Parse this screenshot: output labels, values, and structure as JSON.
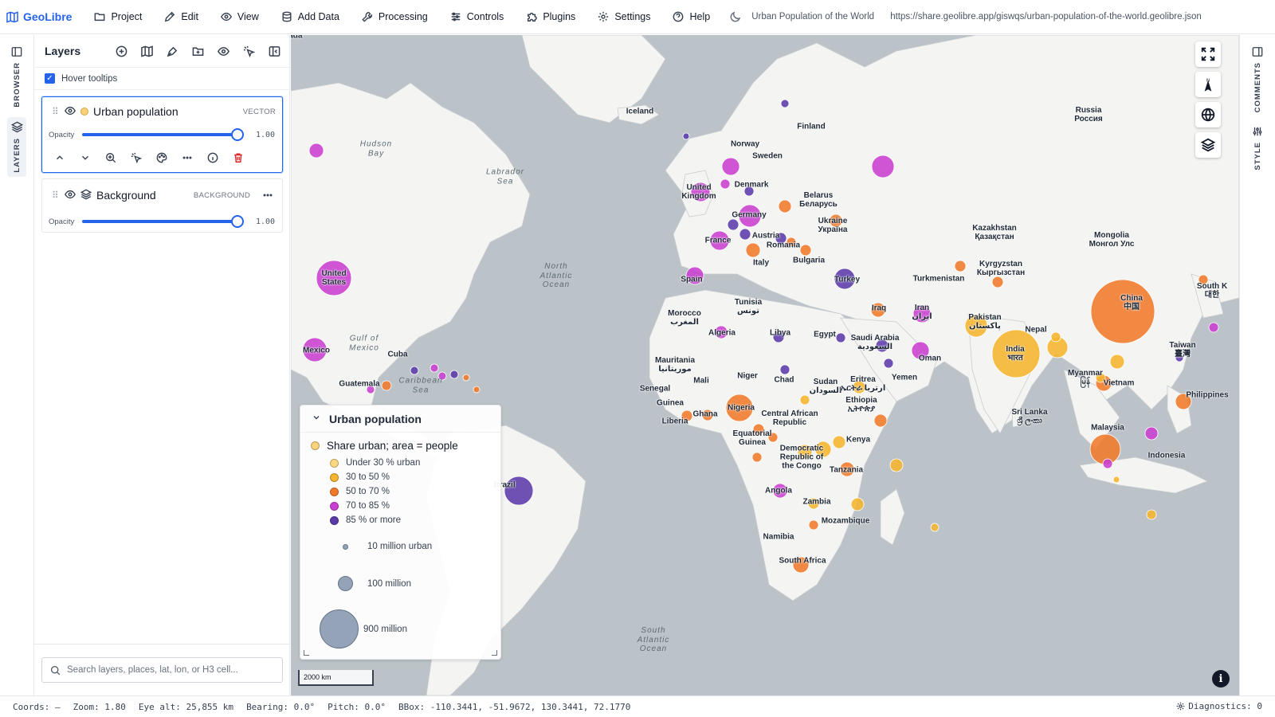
{
  "app": {
    "name": "GeoLibre"
  },
  "menu": [
    {
      "label": "Project",
      "icon": "folder-icon"
    },
    {
      "label": "Edit",
      "icon": "pencil-icon"
    },
    {
      "label": "View",
      "icon": "eye-icon"
    },
    {
      "label": "Add Data",
      "icon": "database-icon"
    },
    {
      "label": "Processing",
      "icon": "wrench-icon"
    },
    {
      "label": "Controls",
      "icon": "sliders-icon"
    },
    {
      "label": "Plugins",
      "icon": "puzzle-icon"
    },
    {
      "label": "Settings",
      "icon": "gear-icon"
    },
    {
      "label": "Help",
      "icon": "help-icon"
    }
  ],
  "project": {
    "title": "Urban Population of the World",
    "url": "https://share.geolibre.app/giswqs/urban-population-of-the-world.geolibre.json"
  },
  "left_rail": {
    "browser": "BROWSER",
    "layers": "LAYERS"
  },
  "right_rail": {
    "comments": "COMMENTS",
    "style": "STYLE"
  },
  "layers_panel": {
    "title": "Layers",
    "hover_tooltips": "Hover tooltips",
    "hover_checked": true,
    "opacity_label": "Opacity",
    "search_placeholder": "Search layers, places, lat, lon, or H3 cell...",
    "layers": [
      {
        "name": "Urban population",
        "type": "VECTOR",
        "opacity": "1.00",
        "opacity_value": 1.0,
        "visible": true,
        "color": "#f9d27a"
      },
      {
        "name": "Background",
        "type": "BACKGROUND",
        "opacity": "1.00",
        "opacity_value": 1.0,
        "visible": true
      }
    ]
  },
  "map": {
    "countries": [
      {
        "name": "Canada",
        "display": "anada"
      },
      {
        "name": "United\nStates"
      },
      {
        "name": "Mexico"
      },
      {
        "name": "Cuba"
      },
      {
        "name": "Guatemala"
      },
      {
        "name": "Brazil"
      },
      {
        "name": "Iceland"
      },
      {
        "name": "Finland"
      },
      {
        "name": "Norway"
      },
      {
        "name": "Sweden"
      },
      {
        "name": "Denmark"
      },
      {
        "name": "United\nKingdom"
      },
      {
        "name": "Germany"
      },
      {
        "name": "France"
      },
      {
        "name": "Spain"
      },
      {
        "name": "Italy"
      },
      {
        "name": "Austria"
      },
      {
        "name": "Romania"
      },
      {
        "name": "Bulgaria"
      },
      {
        "name": "Belarus\nБеларусь"
      },
      {
        "name": "Ukraine\nУкраïна"
      },
      {
        "name": "Russia\nРоссия"
      },
      {
        "name": "Kazakhstan\nҚазақстан"
      },
      {
        "name": "Mongolia\nМонгол Улс"
      },
      {
        "name": "Kyrgyzstan\nКыргызстан"
      },
      {
        "name": "Turkmenistan"
      },
      {
        "name": "Turkey"
      },
      {
        "name": "Morocco\nالمغرب"
      },
      {
        "name": "Tunisia\nتونس"
      },
      {
        "name": "Algeria"
      },
      {
        "name": "Libya"
      },
      {
        "name": "Egypt"
      },
      {
        "name": "Saudi Arabia\nالسعودية"
      },
      {
        "name": "Iraq"
      },
      {
        "name": "Iran\nایران"
      },
      {
        "name": "Oman"
      },
      {
        "name": "Yemen"
      },
      {
        "name": "Pakistan\nپاکستان"
      },
      {
        "name": "India\nभारत"
      },
      {
        "name": "Nepal"
      },
      {
        "name": "China\n中国"
      },
      {
        "name": "South K\n대한"
      },
      {
        "name": "Taiwan\n臺灣"
      },
      {
        "name": "Myanmar\nမြန်"
      },
      {
        "name": "Vietnam"
      },
      {
        "name": "Philippines"
      },
      {
        "name": "Sri Lanka\nශ්‍රී ලංකා"
      },
      {
        "name": "Malaysia"
      },
      {
        "name": "Indonesia"
      },
      {
        "name": "Mauritania\nموريتانيا"
      },
      {
        "name": "Mali"
      },
      {
        "name": "Niger"
      },
      {
        "name": "Chad"
      },
      {
        "name": "Sudan\nالسودان"
      },
      {
        "name": "Eritrea\nኤርትራ ارتريا"
      },
      {
        "name": "Ethiopia\nኢትዮጵያ"
      },
      {
        "name": "Senegal"
      },
      {
        "name": "Guinea"
      },
      {
        "name": "Liberia"
      },
      {
        "name": "Ghana"
      },
      {
        "name": "Nigeria"
      },
      {
        "name": "Central African\nRepublic"
      },
      {
        "name": "Equatorial\nGuinea"
      },
      {
        "name": "Democratic\nRepublic of\nthe Congo"
      },
      {
        "name": "Kenya"
      },
      {
        "name": "Tanzania"
      },
      {
        "name": "Angola"
      },
      {
        "name": "Zambia"
      },
      {
        "name": "Mozambique"
      },
      {
        "name": "Namibia"
      },
      {
        "name": "South Africa"
      }
    ],
    "seas": [
      "Hudson\nBay",
      "Labrador\nSea",
      "North\nAtlantic\nOcean",
      "Gulf of\nMexico",
      "Caribbean\nSea",
      "South\nAtlantic\nOcean"
    ],
    "scale": "2000 km"
  },
  "legend": {
    "title": "Urban population",
    "subtitle": "Share urban; area = people",
    "subtitle_color": "#f9d27a",
    "classes": [
      {
        "label": "Under 30 % urban",
        "color": "#fbd97f"
      },
      {
        "label": "30 to 50 %",
        "color": "#f5b52e"
      },
      {
        "label": "50 to 70 %",
        "color": "#f07a2a"
      },
      {
        "label": "70 to 85 %",
        "color": "#c93fd0"
      },
      {
        "label": "85 % or more",
        "color": "#5b3aa8"
      }
    ],
    "sizes": [
      {
        "label": "10 million urban"
      },
      {
        "label": "100 million"
      },
      {
        "label": "900 million"
      }
    ]
  },
  "status": {
    "coords": "Coords: —",
    "zoom": "Zoom: 1.80",
    "eye_alt": "Eye alt: 25,855 km",
    "bearing": "Bearing: 0.0°",
    "pitch": "Pitch: 0.0°",
    "bbox": "BBox: -110.3441, -51.9672, 130.3441, 72.1770",
    "diagnostics": "Diagnostics: 0"
  }
}
